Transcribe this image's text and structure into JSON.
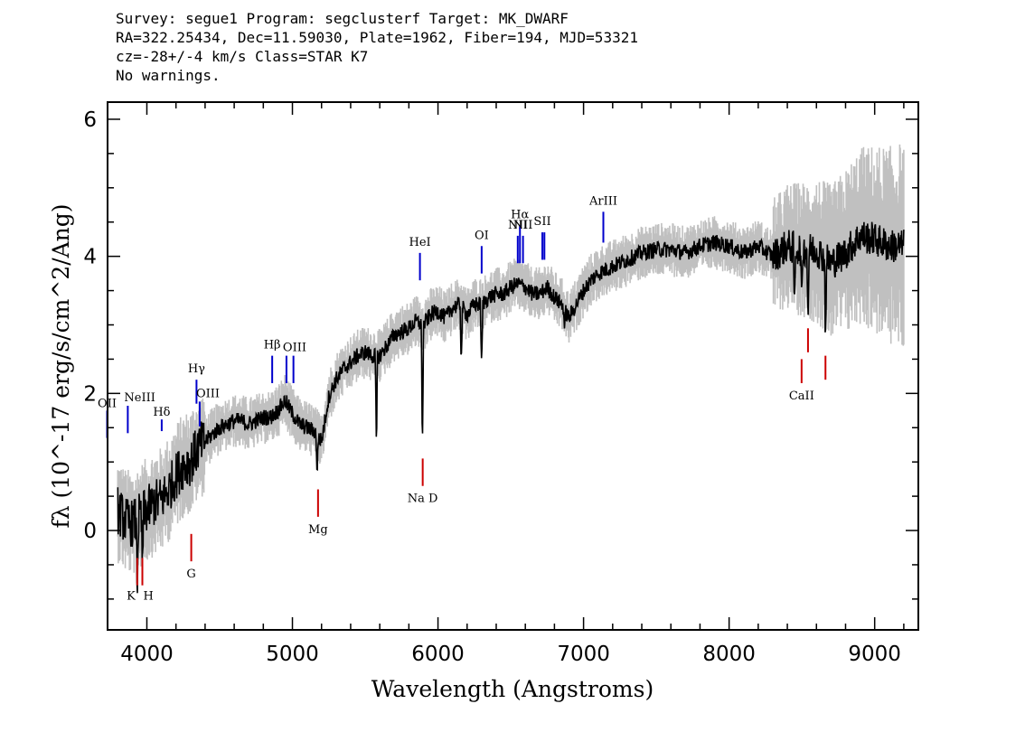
{
  "header": {
    "line1": "Survey: segue1 Program: segclusterf Target: MK_DWARF",
    "line2": "RA=322.25434, Dec=11.59030, Plate=1962, Fiber=194, MJD=53321",
    "line3": "cz=-28+/-4 km/s Class=STAR K7",
    "line4": "No warnings."
  },
  "chart_data": {
    "type": "line",
    "xlabel": "Wavelength (Angstroms)",
    "ylabel": "fλ (10^-17 erg/s/cm^2/Ang)",
    "xlim": [
      3730,
      9300
    ],
    "ylim": [
      -1.45,
      6.25
    ],
    "x_ticks": [
      "4000",
      "5000",
      "6000",
      "7000",
      "8000",
      "9000"
    ],
    "y_ticks": [
      "0",
      "2",
      "4",
      "6"
    ],
    "grid": false,
    "colors": {
      "flux": "#000000",
      "error_envelope": "#c0c0c0",
      "emission": "#0000cc",
      "absorption": "#cc0000"
    },
    "series": [
      {
        "x": [
          3800,
          3850,
          3900,
          3950,
          4000,
          4050,
          4100,
          4150,
          4200,
          4250,
          4300,
          4350,
          4400,
          4450,
          4500,
          4550,
          4600,
          4650,
          4700,
          4750,
          4800,
          4850,
          4900,
          4950,
          5000,
          5050,
          5100,
          5150,
          5200,
          5250,
          5300,
          5350,
          5400,
          5450,
          5500,
          5550,
          5600,
          5650,
          5700,
          5750,
          5800,
          5850,
          5900,
          5950,
          6000,
          6050,
          6100,
          6150,
          6200,
          6250,
          6300,
          6350,
          6400,
          6450,
          6500,
          6550,
          6600,
          6650,
          6700,
          6750,
          6800,
          6850,
          6900,
          6950,
          7000,
          7050,
          7100,
          7150,
          7200,
          7300,
          7400,
          7500,
          7600,
          7700,
          7800,
          7900,
          8000,
          8100,
          8200,
          8300,
          8400,
          8500,
          8600,
          8700,
          8800,
          8900,
          9000,
          9100,
          9200
        ],
        "y": [
          0.3,
          0.15,
          0.1,
          0.2,
          0.3,
          0.4,
          0.45,
          0.6,
          0.8,
          0.95,
          1.0,
          1.2,
          1.3,
          1.4,
          1.5,
          1.55,
          1.6,
          1.6,
          1.55,
          1.6,
          1.65,
          1.65,
          1.75,
          1.9,
          1.7,
          1.55,
          1.5,
          1.45,
          1.3,
          1.95,
          2.2,
          2.35,
          2.45,
          2.55,
          2.6,
          2.55,
          2.55,
          2.7,
          2.85,
          2.9,
          2.95,
          3.05,
          3.0,
          3.15,
          3.2,
          3.1,
          3.25,
          3.3,
          3.15,
          3.3,
          3.3,
          3.4,
          3.45,
          3.45,
          3.55,
          3.6,
          3.55,
          3.45,
          3.45,
          3.55,
          3.4,
          3.3,
          3.1,
          3.3,
          3.5,
          3.65,
          3.75,
          3.8,
          3.85,
          3.95,
          4.05,
          4.1,
          4.1,
          4.05,
          4.15,
          4.2,
          4.15,
          4.05,
          4.15,
          4.0,
          4.15,
          4.1,
          4.1,
          3.9,
          4.05,
          4.3,
          4.25,
          4.15,
          4.15
        ]
      }
    ],
    "lines": [
      {
        "label": "OII",
        "wavelength": 3727,
        "kind": "emission"
      },
      {
        "label": "NeIII",
        "wavelength": 3869,
        "kind": "emission"
      },
      {
        "label": "Hδ",
        "wavelength": 4102,
        "kind": "emission"
      },
      {
        "label": "Hγ",
        "wavelength": 4341,
        "kind": "emission"
      },
      {
        "label": "OIII",
        "wavelength": 4363,
        "kind": "emission"
      },
      {
        "label": "Hβ",
        "wavelength": 4861,
        "kind": "emission"
      },
      {
        "label": "OIII",
        "wavelength": 4959,
        "kind": "emission"
      },
      {
        "label": "",
        "wavelength": 5007,
        "kind": "emission"
      },
      {
        "label": "HeI",
        "wavelength": 5876,
        "kind": "emission"
      },
      {
        "label": "OI",
        "wavelength": 6300,
        "kind": "emission"
      },
      {
        "label": "NII",
        "wavelength": 6548,
        "kind": "emission"
      },
      {
        "label": "Hα",
        "wavelength": 6563,
        "kind": "emission"
      },
      {
        "label": "NII",
        "wavelength": 6584,
        "kind": "emission"
      },
      {
        "label": "SII",
        "wavelength": 6717,
        "kind": "emission"
      },
      {
        "label": "",
        "wavelength": 6731,
        "kind": "emission"
      },
      {
        "label": "ArIII",
        "wavelength": 7136,
        "kind": "emission"
      },
      {
        "label": "K",
        "wavelength": 3934,
        "kind": "absorption"
      },
      {
        "label": "H",
        "wavelength": 3969,
        "kind": "absorption"
      },
      {
        "label": "G",
        "wavelength": 4305,
        "kind": "absorption"
      },
      {
        "label": "Mg",
        "wavelength": 5176,
        "kind": "absorption"
      },
      {
        "label": "Na D",
        "wavelength": 5895,
        "kind": "absorption"
      },
      {
        "label": "CaII",
        "wavelength": 8498,
        "kind": "absorption"
      },
      {
        "label": "",
        "wavelength": 8542,
        "kind": "absorption"
      },
      {
        "label": "",
        "wavelength": 8662,
        "kind": "absorption"
      }
    ]
  }
}
